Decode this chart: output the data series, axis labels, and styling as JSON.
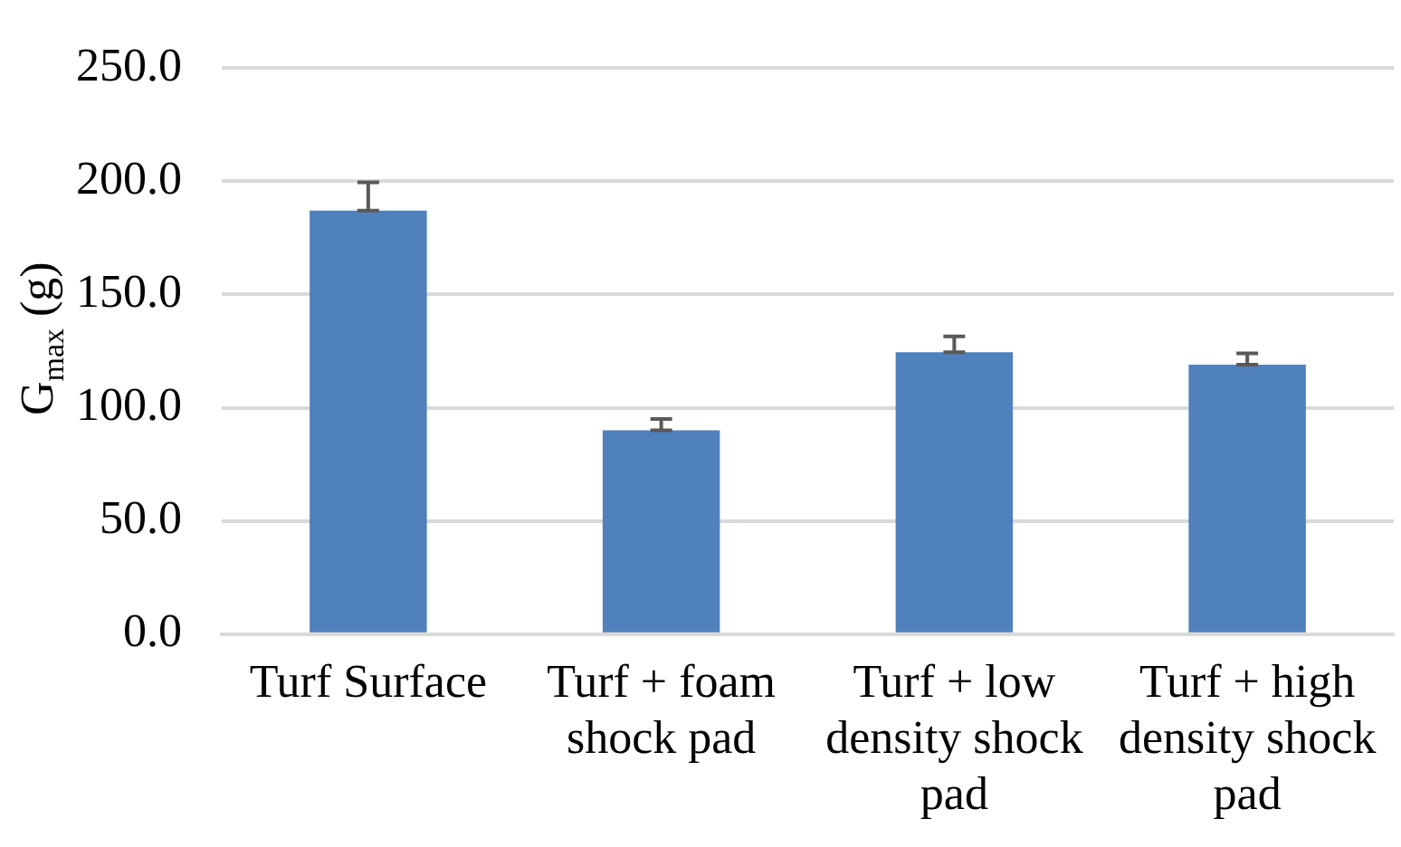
{
  "chart_data": {
    "type": "bar",
    "ylabel": "G$_{max}$ (g)",
    "categories": [
      "Turf Surface",
      "Turf + foam shock pad",
      "Turf + low density shock pad",
      "Turf + high density shock pad"
    ],
    "values": [
      187,
      90,
      124.5,
      119
    ],
    "color": "#4f81bd",
    "errors": [
      [
        187,
        199.5
      ],
      [
        90,
        95
      ],
      [
        124.5,
        131.5
      ],
      [
        119,
        124
      ]
    ],
    "ylim": [
      0,
      250
    ],
    "yticks": [
      {
        "value": 0,
        "label": "0.0"
      },
      {
        "value": 50,
        "label": "50.0"
      },
      {
        "value": 100,
        "label": "100.0"
      },
      {
        "value": 150,
        "label": "150.0"
      },
      {
        "value": 200,
        "label": "200.0"
      },
      {
        "value": 250,
        "label": "250.0"
      }
    ],
    "grid": "y"
  }
}
